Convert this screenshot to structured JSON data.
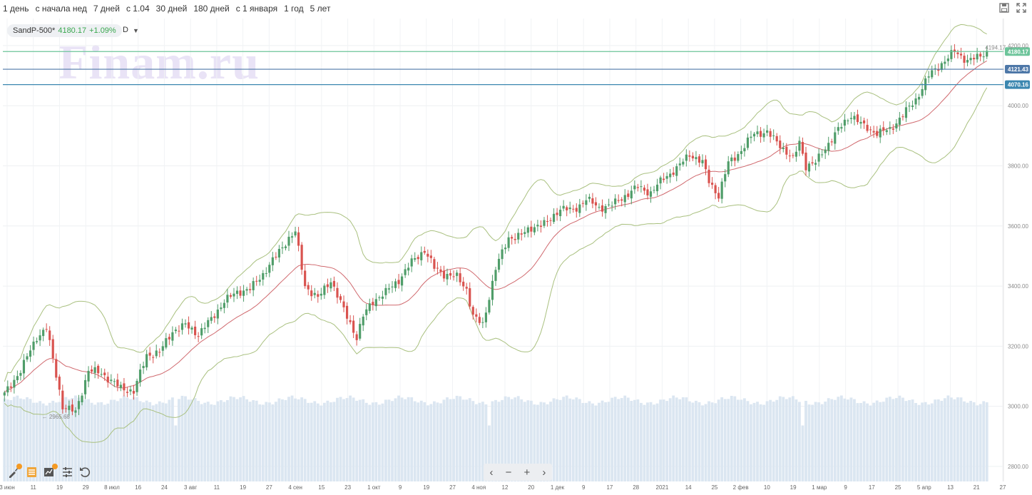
{
  "toolbar": {
    "periods": [
      "1 день",
      "с начала нед",
      "7 дней",
      "с 1.04",
      "30 дней",
      "180 дней",
      "с 1 января",
      "1 год",
      "5 лет"
    ]
  },
  "legend": {
    "symbol": "SandP-500*",
    "price": "4180.17",
    "change": "+1.09%"
  },
  "interval": "D",
  "interval_caret": "▼",
  "watermark": "Finam.ru",
  "nav": {
    "prev": "‹",
    "zoom_out": "−",
    "zoom_in": "+",
    "next": "›"
  },
  "colors": {
    "up": "#4f9d69",
    "down": "#d9534f",
    "band": "#a9c07f",
    "ma": "#d0696e",
    "volume": "#dbe6f1",
    "line_last": "#7ecba5",
    "line_mid": "#4e78a8",
    "line_low": "#3b87b0"
  },
  "chart_data": {
    "type": "candlestick",
    "symbol": "SandP-500*",
    "interval": "D",
    "ylim": [
      2750,
      4290
    ],
    "yticks": [
      "2800.00",
      "3000.00",
      "3200.00",
      "3400.00",
      "3600.00",
      "3800.00",
      "4000.00",
      "4200.00"
    ],
    "xticks": [
      "3 июн",
      "11",
      "19",
      "29",
      "8 июл",
      "16",
      "24",
      "3 авг",
      "11",
      "19",
      "27",
      "4 сен",
      "15",
      "23",
      "1 окт",
      "9",
      "19",
      "27",
      "4 ноя",
      "12",
      "20",
      "1 дек",
      "9",
      "17",
      "28",
      "2021",
      "14",
      "25",
      "2 фев",
      "10",
      "19",
      "1 мар",
      "9",
      "17",
      "25",
      "5 апр",
      "13",
      "21",
      "27"
    ],
    "price_lines": [
      {
        "label": "4180.17",
        "value": 4180.17,
        "color": "#6cc49a"
      },
      {
        "label": "4121.43",
        "value": 4121.43,
        "color": "#4e78a8"
      },
      {
        "label": "4070.16",
        "value": 4070.16,
        "color": "#3b87b0"
      }
    ],
    "annotations": [
      {
        "text": "← 2965.68",
        "value": 2965.68,
        "at_tick": "11"
      },
      {
        "text": "4194.17 →",
        "value": 4194.17,
        "at_tick": "21"
      }
    ],
    "close_anchors": [
      [
        0,
        3040
      ],
      [
        5,
        3120
      ],
      [
        10,
        3230
      ],
      [
        13,
        3260
      ],
      [
        18,
        3000
      ],
      [
        22,
        2980
      ],
      [
        26,
        3120
      ],
      [
        30,
        3110
      ],
      [
        36,
        3060
      ],
      [
        40,
        3050
      ],
      [
        44,
        3170
      ],
      [
        48,
        3180
      ],
      [
        52,
        3250
      ],
      [
        56,
        3270
      ],
      [
        60,
        3240
      ],
      [
        64,
        3290
      ],
      [
        68,
        3350
      ],
      [
        72,
        3380
      ],
      [
        76,
        3390
      ],
      [
        80,
        3440
      ],
      [
        84,
        3500
      ],
      [
        88,
        3560
      ],
      [
        90,
        3580
      ],
      [
        93,
        3400
      ],
      [
        97,
        3360
      ],
      [
        101,
        3420
      ],
      [
        105,
        3320
      ],
      [
        109,
        3230
      ],
      [
        111,
        3300
      ],
      [
        114,
        3350
      ],
      [
        118,
        3380
      ],
      [
        122,
        3420
      ],
      [
        126,
        3480
      ],
      [
        130,
        3520
      ],
      [
        133,
        3460
      ],
      [
        136,
        3440
      ],
      [
        140,
        3430
      ],
      [
        143,
        3390
      ],
      [
        145,
        3300
      ],
      [
        148,
        3270
      ],
      [
        152,
        3460
      ],
      [
        156,
        3560
      ],
      [
        160,
        3570
      ],
      [
        164,
        3600
      ],
      [
        168,
        3610
      ],
      [
        172,
        3660
      ],
      [
        176,
        3650
      ],
      [
        180,
        3690
      ],
      [
        184,
        3660
      ],
      [
        188,
        3670
      ],
      [
        192,
        3700
      ],
      [
        196,
        3730
      ],
      [
        200,
        3710
      ],
      [
        204,
        3760
      ],
      [
        208,
        3790
      ],
      [
        212,
        3840
      ],
      [
        216,
        3810
      ],
      [
        218,
        3750
      ],
      [
        221,
        3700
      ],
      [
        224,
        3810
      ],
      [
        228,
        3850
      ],
      [
        232,
        3910
      ],
      [
        236,
        3910
      ],
      [
        240,
        3870
      ],
      [
        244,
        3820
      ],
      [
        246,
        3880
      ],
      [
        248,
        3800
      ],
      [
        251,
        3810
      ],
      [
        254,
        3860
      ],
      [
        258,
        3920
      ],
      [
        262,
        3970
      ],
      [
        266,
        3930
      ],
      [
        270,
        3910
      ],
      [
        274,
        3920
      ],
      [
        278,
        3970
      ],
      [
        282,
        4020
      ],
      [
        286,
        4100
      ],
      [
        290,
        4140
      ],
      [
        294,
        4180
      ],
      [
        298,
        4150
      ],
      [
        301,
        4160
      ],
      [
        304,
        4180
      ]
    ],
    "series": [
      {
        "name": "Bollinger upper"
      },
      {
        "name": "Bollinger lower"
      },
      {
        "name": "MA"
      },
      {
        "name": "Volume"
      }
    ],
    "grid": true
  }
}
